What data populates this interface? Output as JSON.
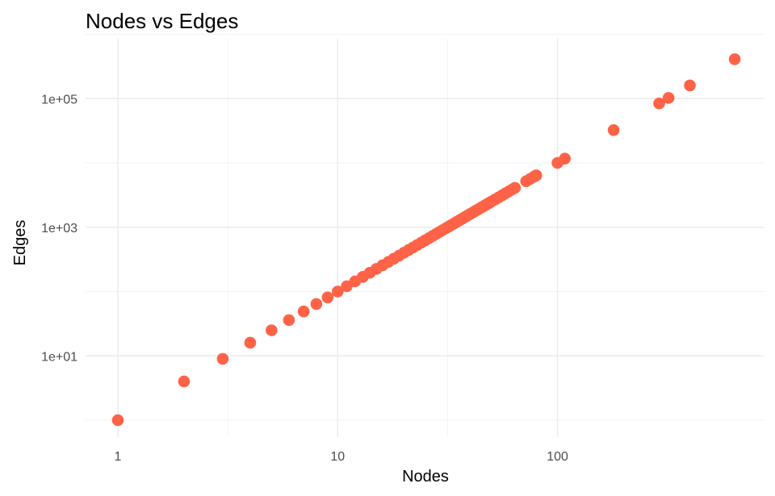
{
  "chart_data": {
    "type": "scatter",
    "title": "Nodes vs Edges",
    "xlabel": "Nodes",
    "ylabel": "Edges",
    "x_scale": "log10",
    "y_scale": "log10",
    "xlim": [
      1,
      600
    ],
    "ylim": [
      1,
      400000
    ],
    "x_ticks": [
      {
        "value": 1,
        "label": "1"
      },
      {
        "value": 10,
        "label": "10"
      },
      {
        "value": 100,
        "label": "100"
      }
    ],
    "y_ticks": [
      {
        "value": 10,
        "label": "1e+01"
      },
      {
        "value": 1000,
        "label": "1e+03"
      },
      {
        "value": 100000,
        "label": "1e+05"
      }
    ],
    "grid": true,
    "point_color": "#ff6347",
    "series": [
      {
        "x": [
          1,
          2,
          3,
          4,
          5,
          6,
          7,
          8,
          9,
          10,
          11,
          12,
          13,
          14,
          15,
          16,
          17,
          18,
          19,
          20,
          21,
          22,
          23,
          24,
          25,
          26,
          27,
          28,
          29,
          30,
          31,
          32,
          33,
          34,
          35,
          36,
          37,
          38,
          39,
          40,
          41,
          42,
          43,
          44,
          45,
          46,
          47,
          48,
          49,
          50,
          52,
          54,
          56,
          58,
          60,
          62,
          64,
          72,
          75,
          78,
          80,
          100,
          108,
          180,
          290,
          320,
          400,
          640
        ],
        "y": [
          1,
          4,
          9,
          16,
          25,
          36,
          49,
          64,
          81,
          100,
          121,
          144,
          169,
          196,
          225,
          256,
          289,
          324,
          361,
          400,
          441,
          484,
          529,
          576,
          625,
          676,
          729,
          784,
          841,
          900,
          961,
          1024,
          1089,
          1156,
          1225,
          1296,
          1369,
          1444,
          1521,
          1600,
          1681,
          1764,
          1849,
          1936,
          2025,
          2116,
          2209,
          2304,
          2401,
          2500,
          2704,
          2916,
          3136,
          3364,
          3600,
          3844,
          4096,
          5184,
          5625,
          6084,
          6400,
          10000,
          11664,
          32400,
          84100,
          102400,
          160000,
          409600
        ]
      }
    ]
  }
}
